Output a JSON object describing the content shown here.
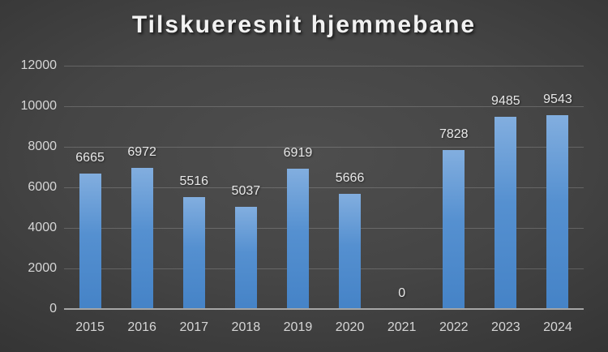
{
  "slide": {
    "title": "Tilskueresnit hjemmebane"
  },
  "chart_data": {
    "type": "bar",
    "title": "Tilskueresnit hjemmebane",
    "categories": [
      "2015",
      "2016",
      "2017",
      "2018",
      "2019",
      "2020",
      "2021",
      "2022",
      "2023",
      "2024"
    ],
    "values": [
      6665,
      6972,
      5516,
      5037,
      6919,
      5666,
      0,
      7828,
      9485,
      9543
    ],
    "data_labels": [
      "6665",
      "6972",
      "5516",
      "5037",
      "6919",
      "5666",
      "0",
      "7828",
      "9485",
      "9543"
    ],
    "xlabel": "",
    "ylabel": "",
    "ylim": [
      0,
      12000
    ],
    "yticks": [
      0,
      2000,
      4000,
      6000,
      8000,
      10000,
      12000
    ],
    "ytick_labels": [
      "0",
      "2000",
      "4000",
      "6000",
      "8000",
      "10000",
      "12000"
    ],
    "grid": true,
    "legend": false
  },
  "colors": {
    "bar_top": "#82aedf",
    "bar_mid": "#5590d0",
    "bar_bottom": "#4583c7",
    "background_center": "#4e4e4e",
    "background_edge": "#1e1e1e",
    "gridline": "rgba(255,255,255,0.18)",
    "axis_line": "#a6a6a6",
    "data_label_text": "#e8e8e8",
    "axis_text": "#d6d6d6",
    "title_text": "#f2f2f2"
  }
}
